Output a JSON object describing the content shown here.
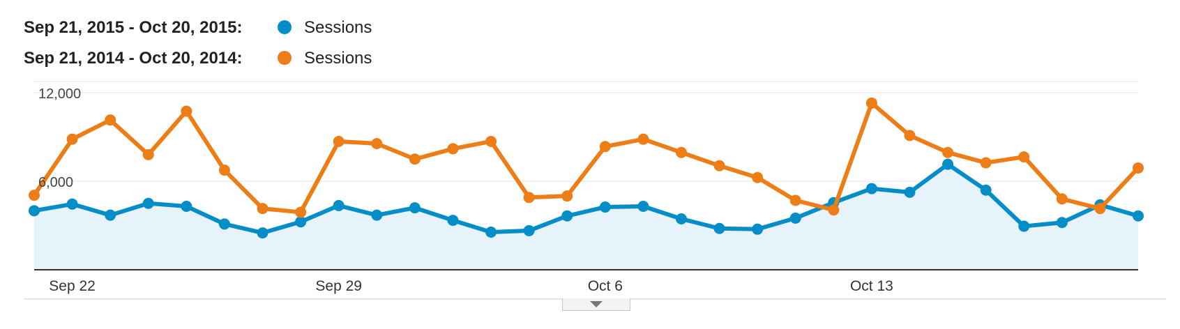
{
  "legend": [
    {
      "range": "Sep 21, 2015 - Oct 20, 2015:",
      "series": "Sessions",
      "color": "#058dc7"
    },
    {
      "range": "Sep 21, 2014 - Oct 20, 2014:",
      "series": "Sessions",
      "color": "#ed7e17"
    }
  ],
  "chart_data": {
    "type": "line",
    "x": [
      "Sep 21",
      "Sep 22",
      "Sep 23",
      "Sep 24",
      "Sep 25",
      "Sep 26",
      "Sep 27",
      "Sep 28",
      "Sep 29",
      "Sep 30",
      "Oct 1",
      "Oct 2",
      "Oct 3",
      "Oct 4",
      "Oct 5",
      "Oct 6",
      "Oct 7",
      "Oct 8",
      "Oct 9",
      "Oct 10",
      "Oct 11",
      "Oct 12",
      "Oct 13",
      "Oct 14",
      "Oct 15",
      "Oct 16",
      "Oct 17",
      "Oct 18",
      "Oct 19",
      "Oct 20"
    ],
    "x_tick_labels": [
      {
        "x": "Sep 22",
        "label": "Sep 22"
      },
      {
        "x": "Sep 29",
        "label": "Sep 29"
      },
      {
        "x": "Oct 6",
        "label": "Oct 6"
      },
      {
        "x": "Oct 13",
        "label": "Oct 13"
      }
    ],
    "y_ticks": [
      {
        "value": 6000,
        "label": "6,000"
      },
      {
        "value": 12000,
        "label": "12,000"
      }
    ],
    "ylim": [
      0,
      12000
    ],
    "grid": true,
    "legend_position": "top-left",
    "series": [
      {
        "range": "Sep 21, 2015 - Oct 20, 2015",
        "name": "Sessions",
        "color": "#058dc7",
        "area": true,
        "values": [
          4000,
          4450,
          3700,
          4500,
          4300,
          3100,
          2500,
          3250,
          4350,
          3700,
          4200,
          3350,
          2550,
          2650,
          3650,
          4250,
          4300,
          3450,
          2800,
          2750,
          3500,
          4550,
          5500,
          5250,
          7150,
          5400,
          2950,
          3200,
          4400,
          3650
        ]
      },
      {
        "range": "Sep 21, 2014 - Oct 20, 2014",
        "name": "Sessions",
        "color": "#ed7e17",
        "area": false,
        "values": [
          5050,
          8850,
          10150,
          7800,
          10750,
          6750,
          4150,
          3900,
          8700,
          8550,
          7500,
          8200,
          8700,
          4900,
          5000,
          8350,
          8850,
          7950,
          7050,
          6250,
          4700,
          4050,
          11300,
          9100,
          7950,
          7250,
          7650,
          4800,
          4150,
          6900
        ]
      }
    ]
  }
}
